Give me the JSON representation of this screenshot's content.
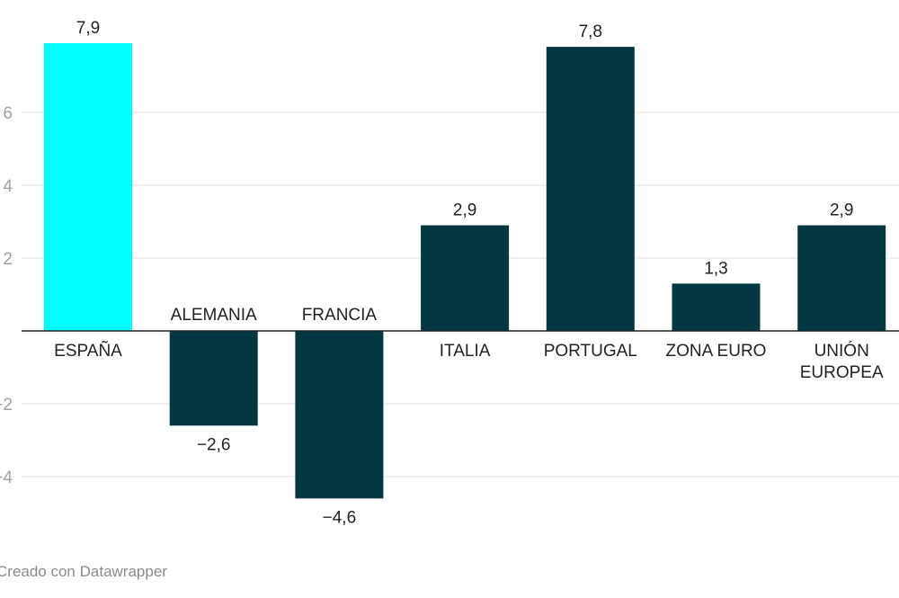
{
  "chart_data": {
    "type": "bar",
    "categories": [
      "ESPAÑA",
      "ALEMANIA",
      "FRANCIA",
      "ITALIA",
      "PORTUGAL",
      "ZONA EURO",
      "UNIÓN EUROPEA"
    ],
    "category_lines": [
      [
        "ESPAÑA"
      ],
      [
        "ALEMANIA"
      ],
      [
        "FRANCIA"
      ],
      [
        "ITALIA"
      ],
      [
        "PORTUGAL"
      ],
      [
        "ZONA EURO"
      ],
      [
        "UNIÓN",
        "EUROPEA"
      ]
    ],
    "values": [
      7.9,
      -2.6,
      -4.6,
      2.9,
      7.8,
      1.3,
      2.9
    ],
    "value_labels": [
      "7,9",
      "−2,6",
      "−4,6",
      "2,9",
      "7,8",
      "1,3",
      "2,9"
    ],
    "highlight_index": 0,
    "colors": {
      "highlight": "#00ffff",
      "default": "#033741",
      "grid": "#e2e2e2",
      "zero_line": "#222222",
      "tick_text": "#a0a0a0",
      "label_text": "#222222"
    },
    "yticks": [
      6,
      4,
      2,
      -2,
      -4
    ],
    "ytick_labels": [
      "6",
      "4",
      "2",
      "−2",
      "−4"
    ],
    "ylim": [
      -5,
      8
    ],
    "grid": true,
    "title": "",
    "xlabel": "",
    "ylabel": ""
  },
  "credit": "Creado con Datawrapper"
}
